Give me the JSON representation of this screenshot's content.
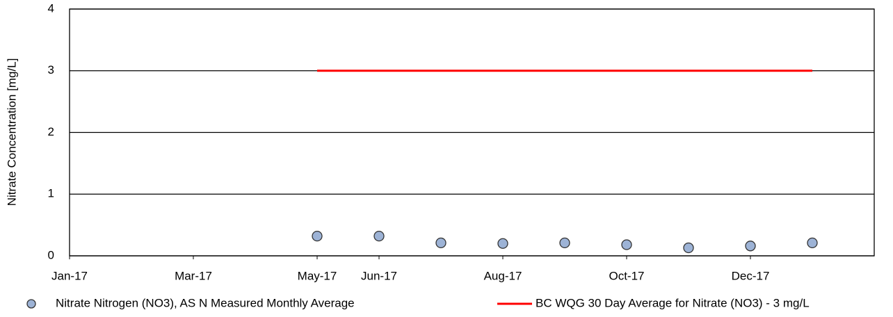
{
  "chart_data": {
    "type": "combo",
    "y_label": "Nitrate Concentration [mg/L]",
    "xlim": [
      "2017-01",
      "2018-02"
    ],
    "xticks": [
      {
        "value": "2017-01",
        "label": "Jan-17"
      },
      {
        "value": "2017-03",
        "label": "Mar-17"
      },
      {
        "value": "2017-05",
        "label": "May-17"
      },
      {
        "value": "2017-06",
        "label": "Jun-17"
      },
      {
        "value": "2017-08",
        "label": "Aug-17"
      },
      {
        "value": "2017-10",
        "label": "Oct-17"
      },
      {
        "value": "2017-12",
        "label": "Dec-17"
      }
    ],
    "ylim": [
      0,
      4
    ],
    "yticks": [
      0,
      1,
      2,
      3,
      4
    ],
    "grid": true,
    "legend": "bottom",
    "series": [
      {
        "name": "Nitrate Nitrogen (NO3), AS N Measured Monthly Average",
        "type": "scatter",
        "color": "#9db3d6",
        "x": [
          "2017-05",
          "2017-06",
          "2017-07",
          "2017-08",
          "2017-09",
          "2017-10",
          "2017-11",
          "2017-12",
          "2018-01"
        ],
        "values": [
          0.32,
          0.32,
          0.21,
          0.2,
          0.21,
          0.18,
          0.13,
          0.16,
          0.21
        ]
      },
      {
        "name": "BC WQG 30 Day Average for Nitrate (NO3) - 3 mg/L",
        "type": "line",
        "color": "#ff0000",
        "x": [
          "2017-05",
          "2018-01"
        ],
        "values": [
          3,
          3
        ]
      }
    ]
  }
}
